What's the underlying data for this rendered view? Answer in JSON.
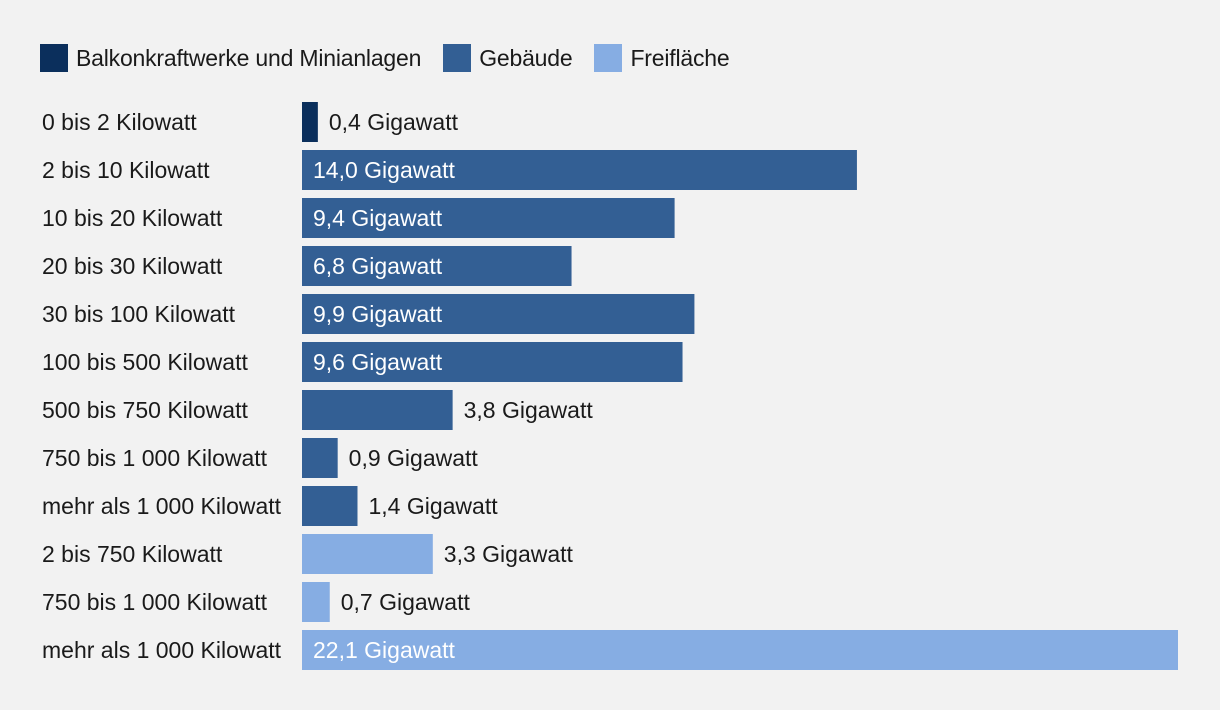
{
  "colors": {
    "background": "#f2f2f2",
    "text_dark": "#1a1a1a",
    "text_on_bar": "#ffffff"
  },
  "legend": [
    {
      "name": "Balkonkraftwerke und Minianlagen",
      "color": "#0b2f5c"
    },
    {
      "name": "Gebäude",
      "color": "#335f94"
    },
    {
      "name": "Freifläche",
      "color": "#86ade3"
    }
  ],
  "chart_data": {
    "type": "bar",
    "orientation": "horizontal",
    "grid": false,
    "legend_position": "top-left",
    "xlim": [
      0,
      22.1
    ],
    "unit": "Gigawatt",
    "bars": [
      {
        "category": "0 bis 2 Kilowatt",
        "value": 0.4,
        "label": "0,4 Gigawatt",
        "series": "Balkonkraftwerke und Minianlagen"
      },
      {
        "category": "2 bis 10 Kilowatt",
        "value": 14.0,
        "label": "14,0 Gigawatt",
        "series": "Gebäude"
      },
      {
        "category": "10 bis 20 Kilowatt",
        "value": 9.4,
        "label": "9,4 Gigawatt",
        "series": "Gebäude"
      },
      {
        "category": "20 bis 30 Kilowatt",
        "value": 6.8,
        "label": "6,8 Gigawatt",
        "series": "Gebäude"
      },
      {
        "category": "30 bis 100 Kilowatt",
        "value": 9.9,
        "label": "9,9 Gigawatt",
        "series": "Gebäude"
      },
      {
        "category": "100 bis 500 Kilowatt",
        "value": 9.6,
        "label": "9,6 Gigawatt",
        "series": "Gebäude"
      },
      {
        "category": "500 bis 750 Kilowatt",
        "value": 3.8,
        "label": "3,8 Gigawatt",
        "series": "Gebäude"
      },
      {
        "category": "750 bis 1 000 Kilowatt",
        "value": 0.9,
        "label": "0,9 Gigawatt",
        "series": "Gebäude"
      },
      {
        "category": "mehr als 1 000 Kilowatt",
        "value": 1.4,
        "label": "1,4 Gigawatt",
        "series": "Gebäude"
      },
      {
        "category": "2 bis 750 Kilowatt",
        "value": 3.3,
        "label": "3,3 Gigawatt",
        "series": "Freifläche"
      },
      {
        "category": "750 bis 1 000 Kilowatt",
        "value": 0.7,
        "label": "0,7 Gigawatt",
        "series": "Freifläche"
      },
      {
        "category": "mehr als 1 000 Kilowatt",
        "value": 22.1,
        "label": "22,1 Gigawatt",
        "series": "Freifläche"
      }
    ]
  }
}
